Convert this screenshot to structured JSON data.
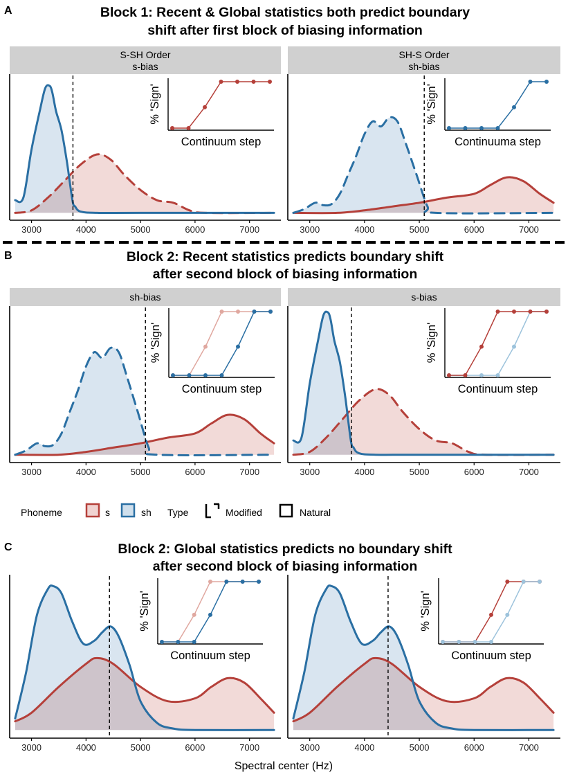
{
  "panels": [
    {
      "letter": "A",
      "title_lines": [
        "Block 1: Recent & Global statistics both predict boundary",
        "shift after first block of biasing information"
      ]
    },
    {
      "letter": "B",
      "title_lines": [
        "Block 2: Recent statistics predicts boundary shift",
        "after second block of biasing information"
      ]
    },
    {
      "letter": "C",
      "title_lines": [
        "Block 2: Global statistics predicts no boundary shift",
        "after second block of biasing information"
      ]
    }
  ],
  "legend": {
    "phoneme_title": "Phoneme",
    "s_label": "s",
    "sh_label": "sh",
    "type_title": "Type",
    "modified_label": "Modified",
    "natural_label": "Natural"
  },
  "x_axis_title": "Spectral center (Hz)",
  "colors": {
    "s": "#B5403A",
    "sh": "#2A6FA3",
    "s_fill": "#F0D3D1",
    "sh_fill": "#CFDFEC",
    "s_light": "#E0A8A0",
    "sh_light": "#9DC3DC",
    "strip": "#D0D0D0"
  },
  "chart_data": [
    {
      "type": "area",
      "panel": "A",
      "facet": "left",
      "strip": [
        "S-SH Order",
        "s-bias"
      ],
      "x_ticks": [
        3000,
        4000,
        5000,
        6000,
        7000
      ],
      "xlim": [
        2650,
        7550
      ],
      "boundary_x": 3760,
      "series": [
        {
          "name": "sh",
          "line": "Natural",
          "x": [
            2700,
            2850,
            3000,
            3150,
            3250,
            3330,
            3380,
            3450,
            3550,
            3650,
            3750,
            3800,
            3900,
            4200,
            5000,
            7450
          ],
          "density": [
            0.1,
            0.12,
            0.5,
            0.8,
            0.98,
            1.0,
            0.95,
            0.8,
            0.65,
            0.4,
            0.1,
            0.05,
            0.01,
            0,
            0,
            0
          ]
        },
        {
          "name": "s",
          "line": "Modified",
          "x": [
            2700,
            3000,
            3300,
            3600,
            3900,
            4200,
            4450,
            4700,
            5000,
            5300,
            5600,
            5900,
            6200,
            7450
          ],
          "density": [
            0,
            0.02,
            0.12,
            0.25,
            0.38,
            0.46,
            0.42,
            0.3,
            0.18,
            0.1,
            0.08,
            0.02,
            0,
            0
          ]
        }
      ],
      "inset": {
        "xlabel": "Continuum step",
        "ylabel": "% 'Sign'",
        "lines": [
          {
            "series": "s",
            "shade": "dark",
            "values": [
              0,
              0,
              0.45,
              1,
              1,
              1,
              1
            ]
          }
        ]
      }
    },
    {
      "type": "area",
      "panel": "A",
      "facet": "right",
      "strip": [
        "SH-S Order",
        "sh-bias"
      ],
      "x_ticks": [
        3000,
        4000,
        5000,
        6000,
        7000
      ],
      "xlim": [
        2650,
        7550
      ],
      "boundary_x": 5090,
      "series": [
        {
          "name": "sh",
          "line": "Modified",
          "x": [
            2700,
            2900,
            3100,
            3250,
            3400,
            3550,
            3700,
            3850,
            4000,
            4150,
            4300,
            4450,
            4600,
            4750,
            4950,
            5150,
            5300,
            7450
          ],
          "density": [
            0,
            0.03,
            0.08,
            0.06,
            0.07,
            0.15,
            0.3,
            0.45,
            0.62,
            0.72,
            0.68,
            0.75,
            0.72,
            0.55,
            0.3,
            0.05,
            0,
            0
          ]
        },
        {
          "name": "s",
          "line": "Natural",
          "x": [
            2700,
            3500,
            4000,
            4500,
            5000,
            5500,
            6000,
            6300,
            6600,
            6900,
            7200,
            7450
          ],
          "density": [
            0,
            0,
            0.02,
            0.05,
            0.08,
            0.12,
            0.15,
            0.22,
            0.28,
            0.25,
            0.15,
            0.08
          ]
        }
      ],
      "inset": {
        "xlabel": "Continuuma step",
        "ylabel": "% 'Sign'",
        "lines": [
          {
            "series": "sh",
            "shade": "dark",
            "values": [
              0,
              0,
              0,
              0,
              0.45,
              1,
              1
            ]
          }
        ]
      }
    },
    {
      "type": "area",
      "panel": "B",
      "facet": "left",
      "strip": [
        "sh-bias"
      ],
      "x_ticks": [
        3000,
        4000,
        5000,
        6000,
        7000
      ],
      "xlim": [
        2650,
        7550
      ],
      "boundary_x": 5090,
      "series": [
        {
          "name": "sh",
          "line": "Modified",
          "x": [
            2700,
            2900,
            3100,
            3250,
            3400,
            3550,
            3700,
            3850,
            4000,
            4150,
            4300,
            4450,
            4600,
            4750,
            4950,
            5150,
            5300,
            7450
          ],
          "density": [
            0,
            0.03,
            0.08,
            0.06,
            0.07,
            0.15,
            0.3,
            0.45,
            0.62,
            0.72,
            0.68,
            0.75,
            0.72,
            0.55,
            0.3,
            0.05,
            0,
            0
          ]
        },
        {
          "name": "s",
          "line": "Natural",
          "x": [
            2700,
            3500,
            4000,
            4500,
            5000,
            5500,
            6000,
            6300,
            6600,
            6900,
            7200,
            7450
          ],
          "density": [
            0,
            0,
            0.02,
            0.05,
            0.08,
            0.12,
            0.15,
            0.22,
            0.28,
            0.25,
            0.15,
            0.08
          ]
        }
      ],
      "inset": {
        "xlabel": "Continuum step",
        "ylabel": "% 'Sign'",
        "lines": [
          {
            "series": "s",
            "shade": "light",
            "values": [
              0,
              0,
              0.45,
              1,
              1,
              1,
              1
            ]
          },
          {
            "series": "sh",
            "shade": "dark",
            "values": [
              0,
              0,
              0,
              0,
              0.45,
              1,
              1
            ]
          }
        ]
      }
    },
    {
      "type": "area",
      "panel": "B",
      "facet": "right",
      "strip": [
        "s-bias"
      ],
      "x_ticks": [
        3000,
        4000,
        5000,
        6000,
        7000
      ],
      "xlim": [
        2650,
        7550
      ],
      "boundary_x": 3760,
      "series": [
        {
          "name": "sh",
          "line": "Natural",
          "x": [
            2700,
            2850,
            3000,
            3150,
            3250,
            3330,
            3380,
            3450,
            3550,
            3650,
            3750,
            3800,
            3900,
            4200,
            5000,
            7450
          ],
          "density": [
            0.1,
            0.12,
            0.5,
            0.8,
            0.98,
            1.0,
            0.95,
            0.8,
            0.65,
            0.4,
            0.1,
            0.05,
            0.01,
            0,
            0,
            0
          ]
        },
        {
          "name": "s",
          "line": "Modified",
          "x": [
            2700,
            3000,
            3300,
            3600,
            3900,
            4200,
            4450,
            4700,
            5000,
            5300,
            5600,
            5900,
            6200,
            7450
          ],
          "density": [
            0,
            0.02,
            0.12,
            0.25,
            0.38,
            0.46,
            0.42,
            0.3,
            0.18,
            0.1,
            0.08,
            0.02,
            0,
            0
          ]
        }
      ],
      "inset": {
        "xlabel": "Continuum step",
        "ylabel": "% 'Sign'",
        "lines": [
          {
            "series": "sh",
            "shade": "light",
            "values": [
              0,
              0,
              0,
              0,
              0.45,
              1,
              1
            ]
          },
          {
            "series": "s",
            "shade": "dark",
            "values": [
              0,
              0,
              0.45,
              1,
              1,
              1,
              1
            ]
          }
        ]
      }
    },
    {
      "type": "area",
      "panel": "C",
      "facet": "left",
      "strip": [],
      "x_ticks": [
        3000,
        4000,
        5000,
        6000,
        7000
      ],
      "xlim": [
        2650,
        7550
      ],
      "boundary_x": 4430,
      "series": [
        {
          "name": "sh",
          "line": "Natural",
          "x": [
            2700,
            2900,
            3100,
            3300,
            3400,
            3550,
            3750,
            3950,
            4150,
            4300,
            4450,
            4600,
            4800,
            5000,
            5300,
            5600,
            6000,
            7450
          ],
          "density": [
            0.08,
            0.4,
            0.8,
            0.98,
            1.0,
            0.95,
            0.75,
            0.6,
            0.62,
            0.68,
            0.72,
            0.65,
            0.45,
            0.2,
            0.05,
            0.01,
            0,
            0
          ]
        },
        {
          "name": "s",
          "line": "Natural",
          "x": [
            2700,
            3000,
            3500,
            4000,
            4200,
            4500,
            5000,
            5500,
            6000,
            6300,
            6600,
            6900,
            7200,
            7450
          ],
          "density": [
            0.06,
            0.12,
            0.3,
            0.46,
            0.5,
            0.46,
            0.3,
            0.2,
            0.22,
            0.3,
            0.36,
            0.33,
            0.22,
            0.12
          ]
        }
      ],
      "inset": {
        "xlabel": "Continuum step",
        "ylabel": "% 'Sign'",
        "lines": [
          {
            "series": "s",
            "shade": "light",
            "values": [
              0,
              0,
              0.45,
              1,
              1,
              1,
              1
            ]
          },
          {
            "series": "sh",
            "shade": "dark",
            "values": [
              0,
              0,
              0,
              0.45,
              1,
              1,
              1
            ]
          }
        ]
      }
    },
    {
      "type": "area",
      "panel": "C",
      "facet": "right",
      "strip": [],
      "x_ticks": [
        3000,
        4000,
        5000,
        6000,
        7000
      ],
      "xlim": [
        2650,
        7550
      ],
      "boundary_x": 4430,
      "series": [
        {
          "name": "sh",
          "line": "Natural",
          "x": [
            2700,
            2900,
            3100,
            3300,
            3400,
            3550,
            3750,
            3950,
            4150,
            4300,
            4450,
            4600,
            4800,
            5000,
            5300,
            5600,
            6000,
            7450
          ],
          "density": [
            0.08,
            0.4,
            0.8,
            0.98,
            1.0,
            0.95,
            0.75,
            0.6,
            0.62,
            0.68,
            0.72,
            0.65,
            0.45,
            0.2,
            0.05,
            0.01,
            0,
            0
          ]
        },
        {
          "name": "s",
          "line": "Natural",
          "x": [
            2700,
            3000,
            3500,
            4000,
            4200,
            4500,
            5000,
            5500,
            6000,
            6300,
            6600,
            6900,
            7200,
            7450
          ],
          "density": [
            0.06,
            0.12,
            0.3,
            0.46,
            0.5,
            0.46,
            0.3,
            0.2,
            0.22,
            0.3,
            0.36,
            0.33,
            0.22,
            0.12
          ]
        }
      ],
      "inset": {
        "xlabel": "Continuum step",
        "ylabel": "% 'Sign'",
        "lines": [
          {
            "series": "s",
            "shade": "dark",
            "values": [
              0,
              0,
              0,
              0.45,
              1,
              1,
              1
            ]
          },
          {
            "series": "sh",
            "shade": "light",
            "values": [
              0,
              0,
              0,
              0,
              0.45,
              1,
              1
            ]
          }
        ]
      }
    }
  ]
}
